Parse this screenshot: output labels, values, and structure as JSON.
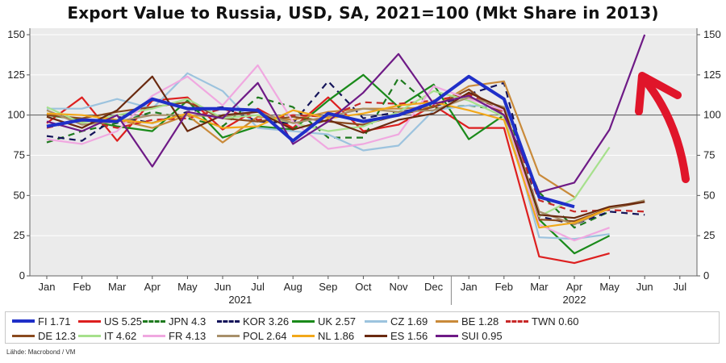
{
  "chart_data": {
    "type": "line",
    "title": "Export Value to Russia, USD, SA, 2021=100 (Mkt Share in 2013)",
    "xlabel": "",
    "ylabel": "",
    "ylim": [
      0,
      150
    ],
    "yticks": [
      0,
      25,
      50,
      75,
      100,
      125,
      150
    ],
    "ytick_labels": [
      "0",
      "25",
      "50",
      "75",
      "100",
      "125",
      "150"
    ],
    "reference_line": 100,
    "x_tick_labels": [
      "Jan",
      "Feb",
      "Mar",
      "Apr",
      "May",
      "Jun",
      "Jul",
      "Aug",
      "Sep",
      "Oct",
      "Nov",
      "Dec",
      "Jan",
      "Feb",
      "Mar",
      "Apr",
      "May",
      "Jun",
      "Jul"
    ],
    "year_labels": [
      {
        "label": "2021",
        "index": 5.5
      },
      {
        "label": "2022",
        "index": 15
      }
    ],
    "series": [
      {
        "name": "FI 1.71",
        "color": "#1f2fc8",
        "dash": "solid",
        "width": 4,
        "values": [
          93,
          97,
          96,
          110,
          104,
          104,
          103,
          84,
          101,
          96,
          100,
          108,
          124,
          110,
          49,
          43,
          null,
          null,
          null
        ]
      },
      {
        "name": "US 5.25",
        "color": "#dd1f1f",
        "dash": "solid",
        "width": 2.2,
        "values": [
          95,
          111,
          84,
          109,
          111,
          91,
          104,
          92,
          111,
          90,
          94,
          106,
          92,
          92,
          12,
          8,
          14,
          null,
          null
        ]
      },
      {
        "name": "JPN 4.3",
        "color": "#1e7a1e",
        "dash": "dashed",
        "width": 2.2,
        "values": [
          83,
          90,
          95,
          102,
          98,
          93,
          111,
          105,
          86,
          86,
          123,
          104,
          106,
          103,
          52,
          30,
          40,
          null,
          null
        ]
      },
      {
        "name": "KOR 3.26",
        "color": "#14145a",
        "dash": "dashed",
        "width": 2.2,
        "values": [
          87,
          84,
          99,
          95,
          102,
          105,
          96,
          95,
          121,
          98,
          102,
          105,
          113,
          120,
          37,
          32,
          40,
          38,
          null
        ]
      },
      {
        "name": "UK 2.57",
        "color": "#1a8a1a",
        "dash": "solid",
        "width": 2.2,
        "values": [
          100,
          97,
          93,
          90,
          109,
          86,
          93,
          91,
          109,
          125,
          105,
          119,
          85,
          100,
          35,
          14,
          25,
          null,
          null
        ]
      },
      {
        "name": "CZ 1.69",
        "color": "#9cc3de",
        "dash": "solid",
        "width": 2.2,
        "values": [
          104,
          104,
          110,
          104,
          126,
          115,
          92,
          90,
          88,
          78,
          81,
          103,
          106,
          105,
          24,
          23,
          26,
          null,
          null
        ]
      },
      {
        "name": "BE 1.28",
        "color": "#c98a3a",
        "dash": "solid",
        "width": 2.2,
        "values": [
          101,
          96,
          97,
          92,
          100,
          83,
          99,
          97,
          102,
          104,
          104,
          105,
          118,
          121,
          63,
          49,
          null,
          null,
          null
        ]
      },
      {
        "name": "TWN 0.60",
        "color": "#c82828",
        "dash": "dashed",
        "width": 2.2,
        "values": [
          92,
          97,
          92,
          97,
          98,
          104,
          97,
          100,
          99,
          108,
          107,
          109,
          113,
          102,
          47,
          40,
          41,
          40,
          null
        ]
      },
      {
        "name": "DE 12.3",
        "color": "#8a4a1e",
        "dash": "solid",
        "width": 2.2,
        "values": [
          100,
          98,
          102,
          105,
          108,
          98,
          96,
          99,
          96,
          94,
          100,
          105,
          116,
          100,
          35,
          34,
          42,
          46,
          null
        ]
      },
      {
        "name": "IT 4.62",
        "color": "#a6e08c",
        "dash": "solid",
        "width": 2.2,
        "values": [
          105,
          95,
          100,
          104,
          110,
          98,
          100,
          95,
          90,
          93,
          102,
          115,
          109,
          99,
          37,
          48,
          80,
          null,
          null
        ]
      },
      {
        "name": "FR 4.13",
        "color": "#f0a8e0",
        "dash": "solid",
        "width": 2.2,
        "values": [
          85,
          82,
          90,
          112,
          124,
          106,
          131,
          96,
          79,
          82,
          88,
          118,
          110,
          103,
          32,
          22,
          30,
          null,
          null
        ]
      },
      {
        "name": "POL 2.64",
        "color": "#a8906a",
        "dash": "solid",
        "width": 2.2,
        "values": [
          103,
          94,
          96,
          100,
          100,
          99,
          102,
          95,
          99,
          104,
          102,
          103,
          111,
          105,
          40,
          32,
          42,
          47,
          null
        ]
      },
      {
        "name": "NL 1.86",
        "color": "#f2a81a",
        "dash": "solid",
        "width": 2.2,
        "values": [
          101,
          100,
          97,
          95,
          101,
          92,
          93,
          103,
          98,
          101,
          106,
          108,
          103,
          97,
          30,
          33,
          42,
          null,
          null
        ]
      },
      {
        "name": "ES 1.56",
        "color": "#6a2a10",
        "dash": "solid",
        "width": 2.2,
        "values": [
          99,
          92,
          103,
          124,
          90,
          100,
          102,
          91,
          97,
          89,
          97,
          101,
          114,
          104,
          38,
          36,
          43,
          46,
          null
        ]
      },
      {
        "name": "SUI 0.95",
        "color": "#6e1a86",
        "dash": "solid",
        "width": 2.2,
        "values": [
          96,
          90,
          100,
          68,
          102,
          98,
          120,
          82,
          96,
          114,
          138,
          107,
          112,
          100,
          52,
          58,
          91,
          150,
          null
        ]
      }
    ],
    "legend_position": "bottom"
  },
  "source_label": "Lähde: Macrobond / VM",
  "annotation": {
    "type": "arrow",
    "color": "#e0152a"
  }
}
